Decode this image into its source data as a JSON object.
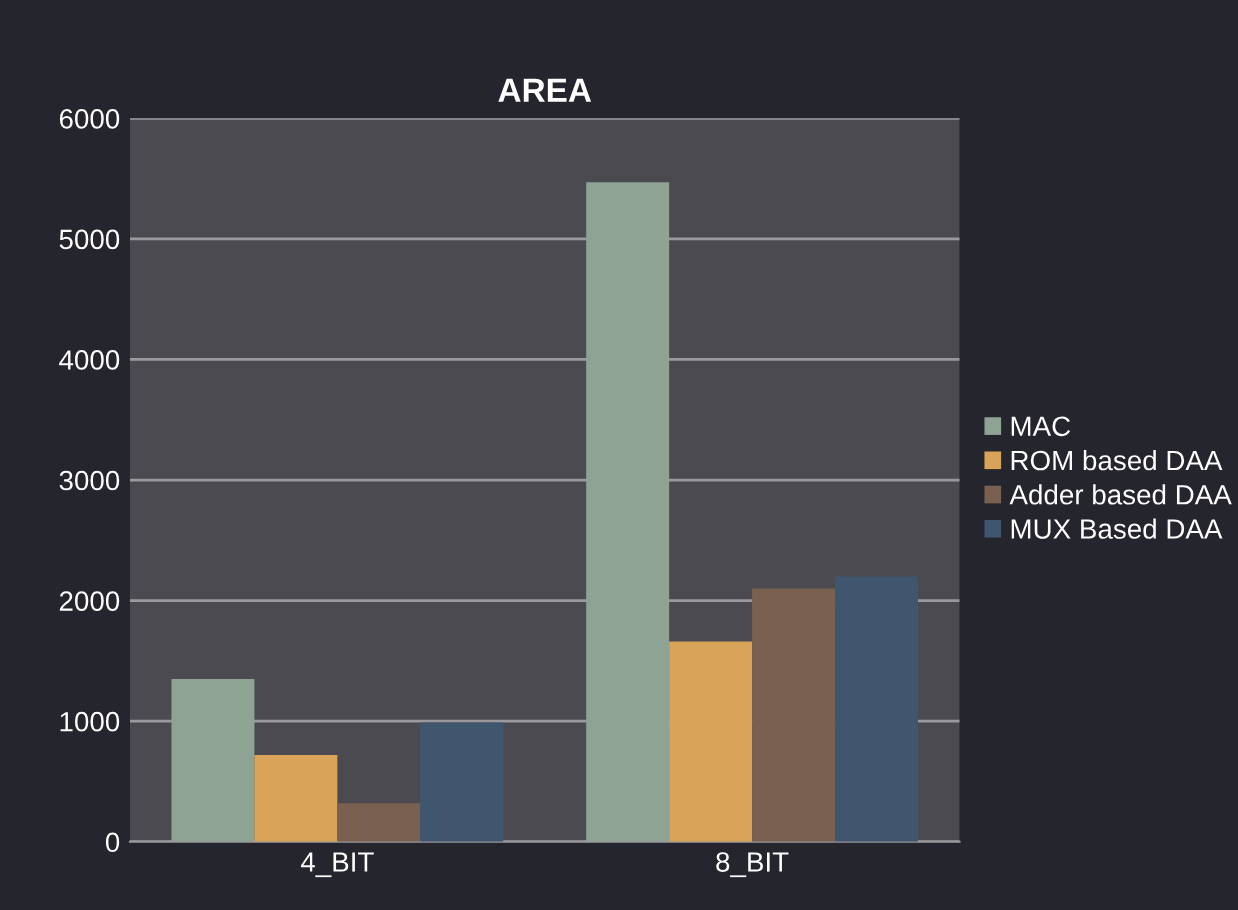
{
  "chart_data": {
    "type": "bar",
    "title": "AREA",
    "categories": [
      "4_BIT",
      "8_BIT"
    ],
    "series": [
      {
        "name": "MAC",
        "color": "#8fa395",
        "values": [
          1350,
          5470
        ]
      },
      {
        "name": "ROM based DAA",
        "color": "#d9a45a",
        "values": [
          720,
          1660
        ]
      },
      {
        "name": "Adder based DAA",
        "color": "#7a6050",
        "values": [
          320,
          2100
        ]
      },
      {
        "name": "MUX Based DAA",
        "color": "#40556e",
        "values": [
          990,
          2200
        ]
      }
    ],
    "ylim": [
      0,
      6000
    ],
    "yticks": [
      0,
      1000,
      2000,
      3000,
      4000,
      5000,
      6000
    ],
    "grid": "y",
    "legend": "right"
  }
}
